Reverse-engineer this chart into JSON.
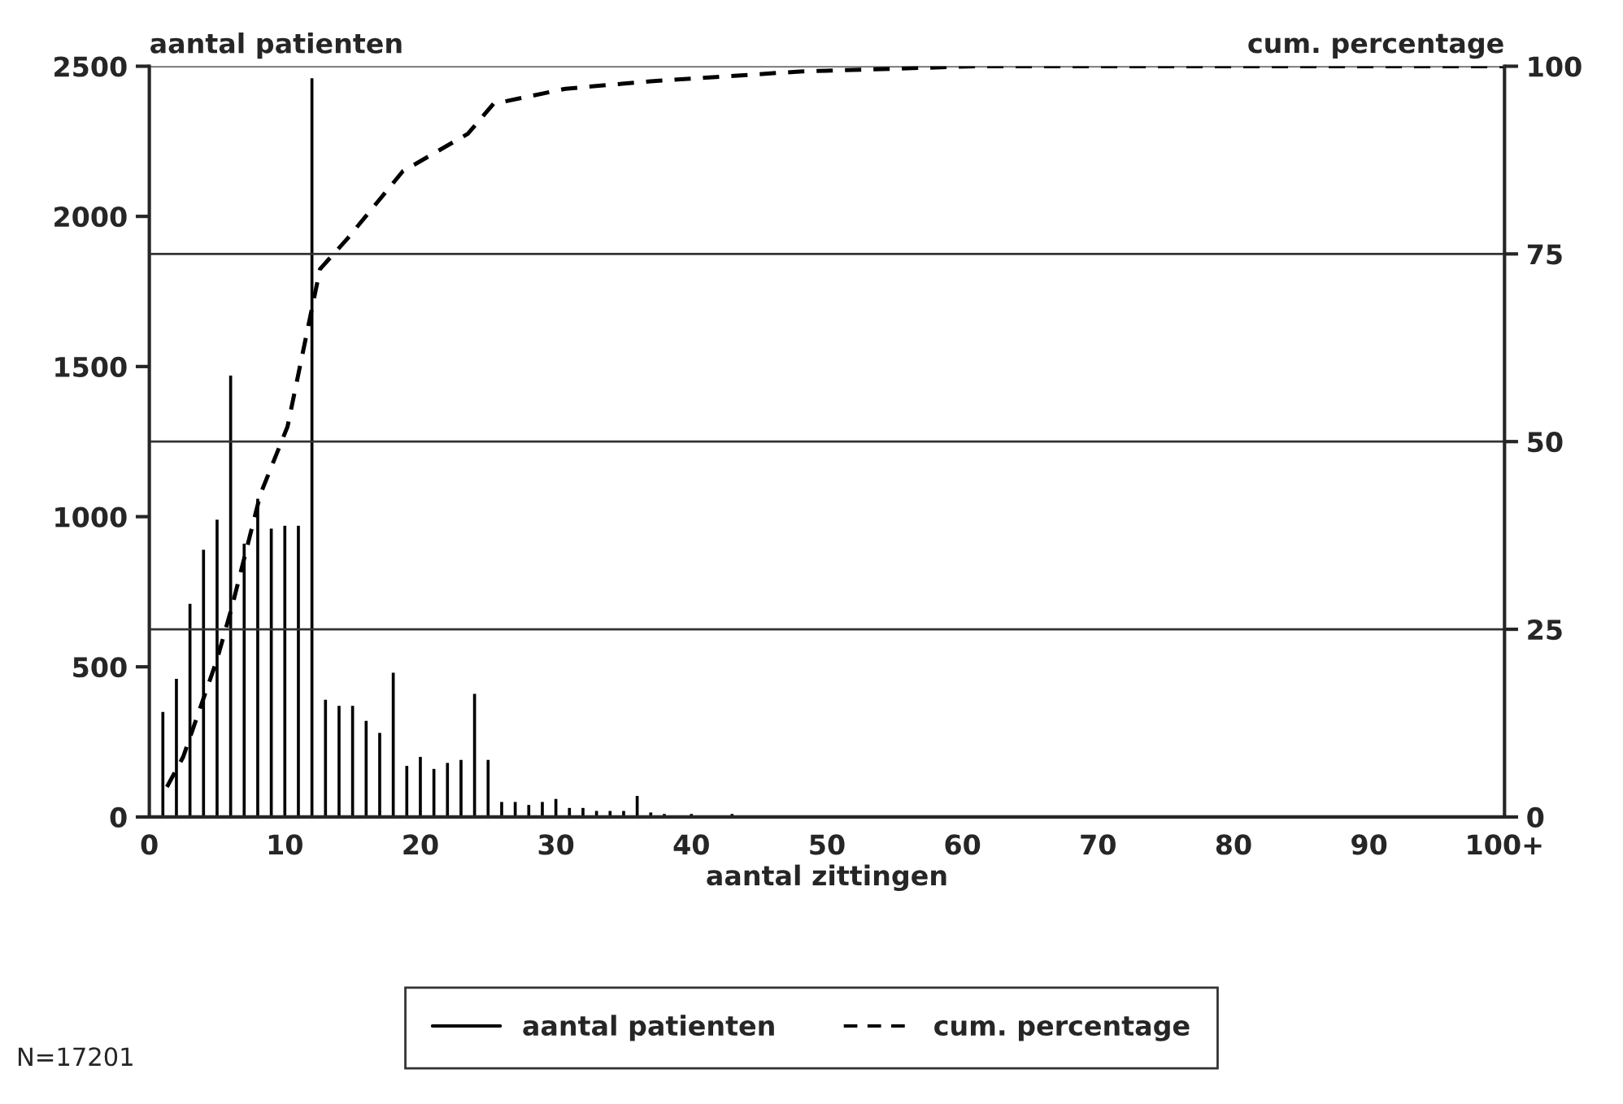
{
  "chart_data": {
    "type": "bar",
    "xlabel": "aantal zittingen",
    "ylabel": "aantal patienten",
    "y2label": "cum. percentage",
    "annotations": [
      "N=17201"
    ],
    "xlim": [
      0,
      100
    ],
    "xticks": [
      0,
      10,
      20,
      30,
      40,
      50,
      60,
      70,
      80,
      90,
      {
        "value": 100,
        "label": "100+"
      }
    ],
    "ylim": [
      0,
      2500
    ],
    "yticks": [
      0,
      500,
      1000,
      1500,
      2000,
      2500
    ],
    "y2lim": [
      0,
      100
    ],
    "y2ticks": [
      0,
      25,
      50,
      75,
      100
    ],
    "grid": "y",
    "legend": "bottom",
    "series": [
      {
        "name": "aantal patienten",
        "color": "#000000",
        "x": [
          1,
          2,
          3,
          4,
          5,
          6,
          7,
          8,
          9,
          10,
          11,
          12,
          13,
          14,
          15,
          16,
          17,
          18,
          19,
          20,
          21,
          22,
          23,
          24,
          25,
          26,
          27,
          28,
          29,
          30,
          31,
          32,
          33,
          34,
          35,
          36,
          37,
          38,
          39,
          40,
          41,
          42,
          43,
          44,
          45,
          46,
          47,
          48,
          49,
          50
        ],
        "values": [
          350,
          460,
          710,
          890,
          990,
          1470,
          910,
          1060,
          960,
          970,
          970,
          2460,
          390,
          370,
          370,
          320,
          280,
          480,
          170,
          200,
          160,
          180,
          190,
          410,
          190,
          50,
          50,
          40,
          50,
          60,
          30,
          30,
          20,
          20,
          20,
          70,
          15,
          10,
          null,
          10,
          5,
          5,
          10,
          5,
          5,
          5,
          5,
          null,
          5,
          5
        ]
      },
      {
        "name": "cum. percentage",
        "type": "line",
        "axis": "y2",
        "line_style": "dashed",
        "color": "#000000",
        "x": [
          1.3,
          2.5,
          5,
          6.1,
          8.2,
          10.2,
          12.6,
          14.6,
          18.7,
          23.5,
          25.4,
          30.7,
          37,
          48,
          61,
          100
        ],
        "values": [
          4,
          8,
          21,
          28,
          43,
          52,
          73,
          77,
          86,
          91,
          95,
          97,
          98,
          99.3,
          100,
          100
        ]
      }
    ]
  }
}
